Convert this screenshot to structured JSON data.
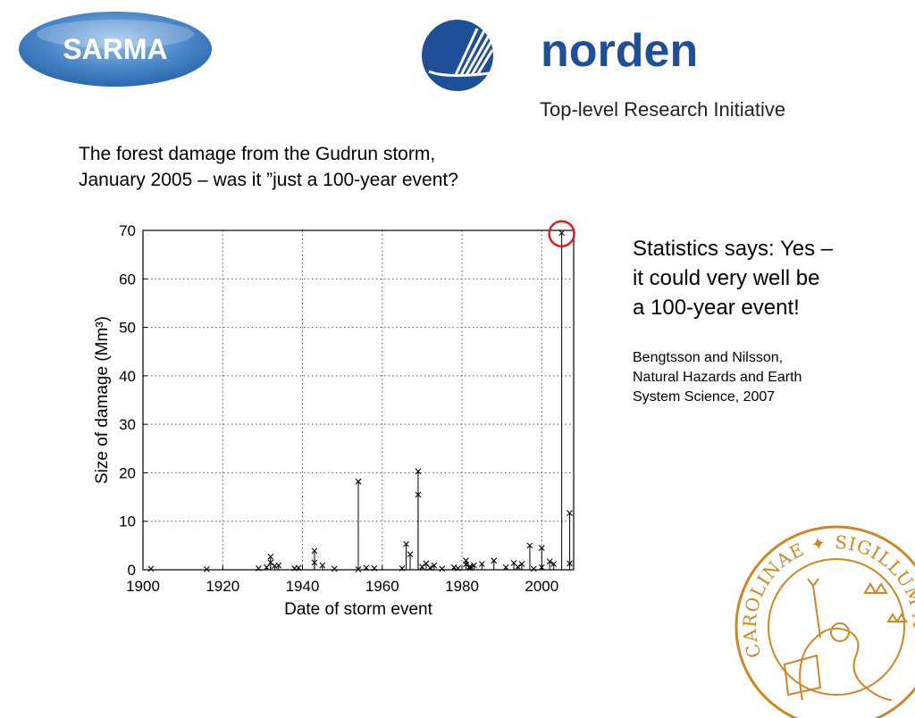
{
  "header": {
    "sarma_logo_text": "SARMA",
    "norden_logo_text": "norden",
    "norden_subtitle": "Top-level Research Initiative"
  },
  "slide": {
    "title_line1": "The forest damage from the Gudrun storm,",
    "title_line2": "January 2005 – was it ”just a 100-year event?"
  },
  "side_text": {
    "line1": "Statistics says: Yes –",
    "line2": "it could very well be",
    "line3": "a 100-year event!",
    "ref_line1": "Bengtsson and Nilsson,",
    "ref_line2": "Natural Hazards and Earth",
    "ref_line3": "System Science, 2007"
  },
  "seal": {
    "text": "CAROLINAE ✦ SIGILLUM ADVT RVMQVE"
  },
  "colors": {
    "sarma_blue": "#4a86c8",
    "norden_blue": "#1f4f97",
    "highlight_red": "#d42020",
    "seal_gold": "#c9882a"
  },
  "chart_data": {
    "type": "scatter",
    "title": "",
    "xlabel": "Date of storm event",
    "ylabel": "Size of damage (Mm³)",
    "xlim": [
      1900,
      2008
    ],
    "ylim": [
      0,
      70
    ],
    "xticks": [
      1900,
      1920,
      1940,
      1960,
      1980,
      2000
    ],
    "yticks": [
      0,
      10,
      20,
      30,
      40,
      50,
      60,
      70
    ],
    "grid": true,
    "marker": "x",
    "stems": true,
    "highlighted_point": {
      "x": 2005,
      "y": 69.5
    },
    "x": [
      1902,
      1916,
      1929,
      1931,
      1932,
      1932,
      1933,
      1934,
      1938,
      1939,
      1943,
      1943,
      1945,
      1948,
      1954,
      1954,
      1956,
      1958,
      1965,
      1966,
      1967,
      1969,
      1969,
      1970,
      1971,
      1972,
      1973,
      1975,
      1978,
      1979,
      1981,
      1981,
      1982,
      1982,
      1983,
      1985,
      1988,
      1991,
      1993,
      1994,
      1995,
      1997,
      1998,
      2000,
      2000,
      2002,
      2003,
      2005,
      2007,
      2007
    ],
    "y": [
      0.2,
      0.1,
      0.3,
      0.5,
      1.5,
      2.7,
      0.8,
      0.9,
      0.3,
      0.4,
      3.9,
      1.5,
      0.9,
      0.2,
      18.2,
      0.1,
      0.4,
      0.3,
      0.3,
      5.3,
      3.2,
      20.3,
      15.5,
      0.6,
      1.3,
      0.4,
      0.9,
      0.2,
      0.5,
      0.3,
      1.9,
      1.1,
      0.4,
      0.7,
      0.9,
      1.2,
      1.9,
      0.5,
      1.4,
      0.6,
      1.2,
      5.0,
      0.2,
      4.5,
      0.5,
      1.7,
      1.2,
      69.5,
      11.7,
      1.3
    ]
  }
}
